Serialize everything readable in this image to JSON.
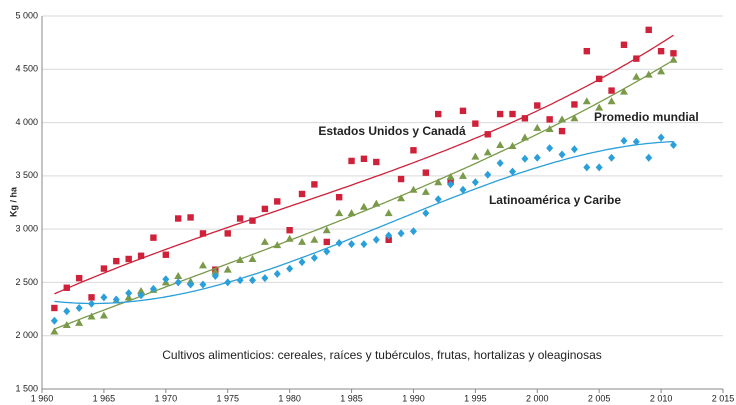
{
  "chart_data": {
    "type": "scatter",
    "y_label": "Kg / ha",
    "annotation": "Cultivos alimenticios: cereales, raíces y tubérculos, frutas, hortalizas y oleaginosas",
    "x": [
      1961,
      1962,
      1963,
      1964,
      1965,
      1966,
      1967,
      1968,
      1969,
      1970,
      1971,
      1972,
      1973,
      1974,
      1975,
      1976,
      1977,
      1978,
      1979,
      1980,
      1981,
      1982,
      1983,
      1984,
      1985,
      1986,
      1987,
      1988,
      1989,
      1990,
      1991,
      1992,
      1993,
      1994,
      1995,
      1996,
      1997,
      1998,
      1999,
      2000,
      2001,
      2002,
      2003,
      2004,
      2005,
      2006,
      2007,
      2008,
      2009,
      2010,
      2011
    ],
    "xlim": [
      1960,
      2015
    ],
    "xticks": [
      {
        "value": 1960,
        "label": "1 960"
      },
      {
        "value": 1965,
        "label": "1 965"
      },
      {
        "value": 1970,
        "label": "1 970"
      },
      {
        "value": 1975,
        "label": "1 975"
      },
      {
        "value": 1980,
        "label": "1 980"
      },
      {
        "value": 1985,
        "label": "1 985"
      },
      {
        "value": 1990,
        "label": "1 990"
      },
      {
        "value": 1995,
        "label": "1 995"
      },
      {
        "value": 2000,
        "label": "2 000"
      },
      {
        "value": 2005,
        "label": "2 005"
      },
      {
        "value": 2010,
        "label": "2 010"
      },
      {
        "value": 2015,
        "label": "2 015"
      }
    ],
    "ylim": [
      1500,
      5000
    ],
    "yticks": [
      {
        "value": 1500,
        "label": "1 500"
      },
      {
        "value": 2000,
        "label": "2 000"
      },
      {
        "value": 2500,
        "label": "2 500"
      },
      {
        "value": 3000,
        "label": "3 000"
      },
      {
        "value": 3500,
        "label": "3 500"
      },
      {
        "value": 4000,
        "label": "4 000"
      },
      {
        "value": 4500,
        "label": "4 500"
      },
      {
        "value": 5000,
        "label": "5 000"
      }
    ],
    "grid": true,
    "trendline": true,
    "series": [
      {
        "name": "Estados Unidos y Canadá",
        "color": "#d0213a",
        "marker": "square",
        "values": [
          2260,
          2450,
          2540,
          2360,
          2630,
          2700,
          2720,
          2750,
          2920,
          2760,
          3100,
          3110,
          2960,
          2620,
          2960,
          3100,
          3080,
          3190,
          3260,
          2990,
          3330,
          3420,
          2880,
          3300,
          3640,
          3660,
          3630,
          2900,
          3470,
          3740,
          3530,
          4080,
          3450,
          4110,
          3990,
          3890,
          4080,
          4080,
          4040,
          4160,
          4030,
          3920,
          4170,
          4670,
          4410,
          4300,
          4730,
          4600,
          4870,
          4670,
          4650
        ]
      },
      {
        "name": "Promedio mundial",
        "color": "#7a9a4a",
        "marker": "triangle",
        "values": [
          2040,
          2100,
          2120,
          2180,
          2190,
          2330,
          2360,
          2420,
          2430,
          2500,
          2560,
          2510,
          2660,
          2600,
          2620,
          2710,
          2720,
          2880,
          2850,
          2910,
          2880,
          2900,
          2990,
          3150,
          3150,
          3210,
          3240,
          3150,
          3290,
          3370,
          3350,
          3440,
          3490,
          3500,
          3680,
          3720,
          3790,
          3780,
          3860,
          3950,
          3940,
          4030,
          4040,
          4200,
          4140,
          4200,
          4290,
          4430,
          4450,
          4480,
          4590
        ]
      },
      {
        "name": "Latinoamérica y Caribe",
        "color": "#2b9fd9",
        "marker": "diamond",
        "values": [
          2140,
          2230,
          2260,
          2300,
          2360,
          2340,
          2400,
          2380,
          2440,
          2530,
          2500,
          2480,
          2480,
          2560,
          2500,
          2520,
          2520,
          2540,
          2580,
          2630,
          2690,
          2730,
          2790,
          2870,
          2860,
          2860,
          2900,
          2940,
          2960,
          2980,
          3150,
          3280,
          3420,
          3370,
          3440,
          3510,
          3620,
          3540,
          3660,
          3670,
          3760,
          3700,
          3750,
          3580,
          3580,
          3670,
          3830,
          3820,
          3670,
          3860,
          3790
        ]
      }
    ]
  }
}
